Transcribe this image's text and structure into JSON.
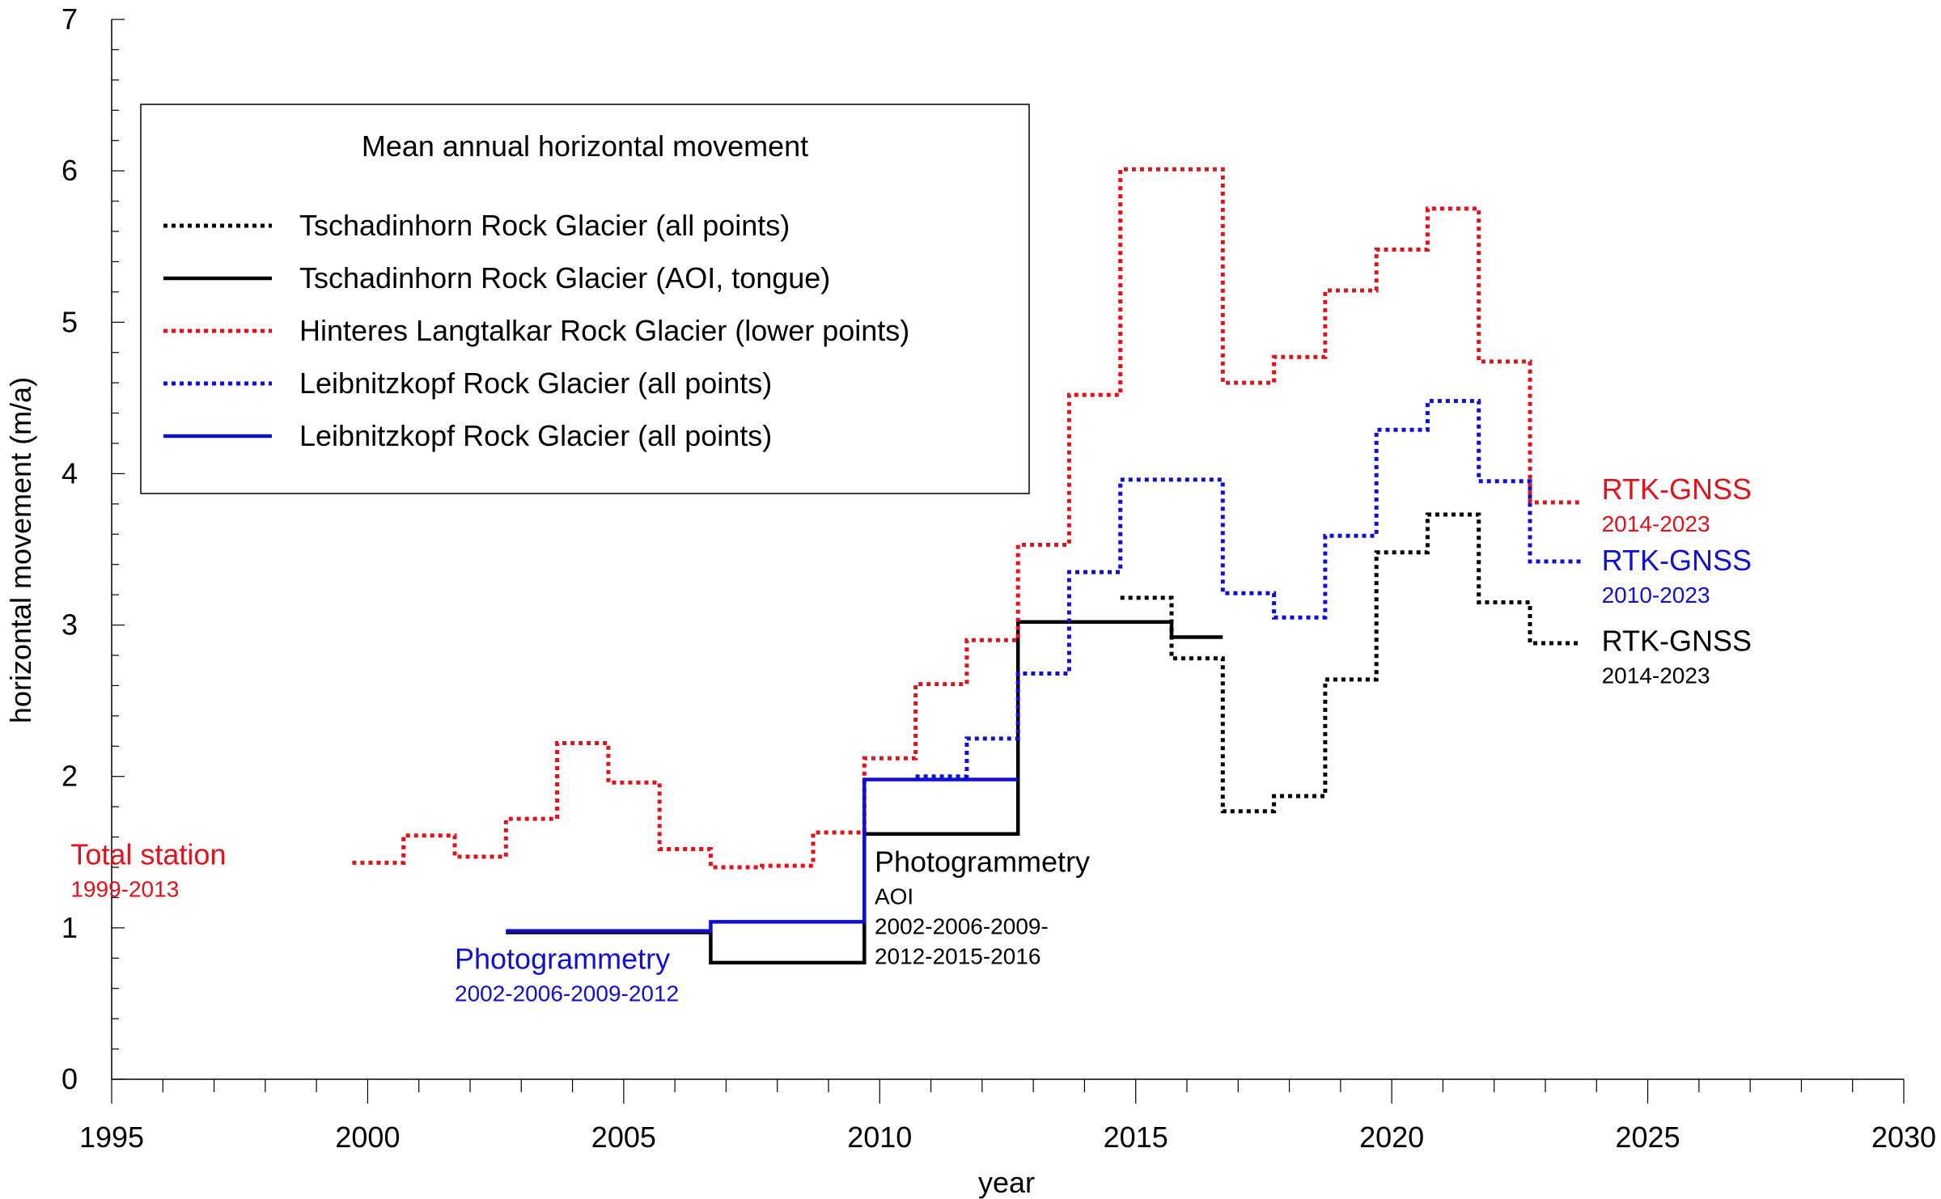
{
  "chart_data": {
    "type": "line",
    "xlabel": "year",
    "ylabel": "horizontal movement (m/a)",
    "xlim": [
      1995,
      2030
    ],
    "ylim": [
      0,
      7
    ],
    "x_ticks": [
      "1995",
      "2000",
      "2005",
      "2010",
      "2015",
      "2020",
      "2025",
      "2030"
    ],
    "y_ticks": [
      "0",
      "1",
      "2",
      "3",
      "4",
      "5",
      "6",
      "7"
    ],
    "legend": {
      "title": "Mean annual horizontal movement",
      "position": "top-left"
    },
    "series": [
      {
        "name": "Tschadinhorn Rock Glacier (all points)",
        "color": "#000000",
        "style": "dotted",
        "steps": [
          {
            "x0": 2014.7,
            "x1": 2015.7,
            "y": 3.18
          },
          {
            "x0": 2015.7,
            "x1": 2016.7,
            "y": 2.78
          },
          {
            "x0": 2016.7,
            "x1": 2017.7,
            "y": 1.77
          },
          {
            "x0": 2017.7,
            "x1": 2018.7,
            "y": 1.87
          },
          {
            "x0": 2018.7,
            "x1": 2019.7,
            "y": 2.64
          },
          {
            "x0": 2019.7,
            "x1": 2020.7,
            "y": 3.48
          },
          {
            "x0": 2020.7,
            "x1": 2021.7,
            "y": 3.73
          },
          {
            "x0": 2021.7,
            "x1": 2022.7,
            "y": 3.15
          },
          {
            "x0": 2022.7,
            "x1": 2023.7,
            "y": 2.88
          }
        ]
      },
      {
        "name": "Tschadinhorn Rock Glacier (AOI, tongue)",
        "color": "#000000",
        "style": "solid",
        "steps": [
          {
            "x0": 2002.7,
            "x1": 2006.7,
            "y": 0.97
          },
          {
            "x0": 2006.7,
            "x1": 2009.7,
            "y": 0.77
          },
          {
            "x0": 2009.7,
            "x1": 2012.7,
            "y": 1.62
          },
          {
            "x0": 2012.7,
            "x1": 2015.7,
            "y": 3.02
          },
          {
            "x0": 2015.7,
            "x1": 2016.7,
            "y": 2.92
          }
        ]
      },
      {
        "name": "Hinteres Langtalkar Rock Glacier (lower points)",
        "color": "#e0121b",
        "style": "dotted",
        "steps": [
          {
            "x0": 1999.7,
            "x1": 2000.7,
            "y": 1.43
          },
          {
            "x0": 2000.7,
            "x1": 2001.7,
            "y": 1.61
          },
          {
            "x0": 2001.7,
            "x1": 2002.7,
            "y": 1.47
          },
          {
            "x0": 2002.7,
            "x1": 2003.7,
            "y": 1.72
          },
          {
            "x0": 2003.7,
            "x1": 2004.7,
            "y": 2.22
          },
          {
            "x0": 2004.7,
            "x1": 2005.7,
            "y": 1.96
          },
          {
            "x0": 2005.7,
            "x1": 2006.7,
            "y": 1.52
          },
          {
            "x0": 2006.7,
            "x1": 2007.7,
            "y": 1.4
          },
          {
            "x0": 2007.7,
            "x1": 2008.7,
            "y": 1.41
          },
          {
            "x0": 2008.7,
            "x1": 2009.7,
            "y": 1.63
          },
          {
            "x0": 2009.7,
            "x1": 2010.7,
            "y": 2.12
          },
          {
            "x0": 2010.7,
            "x1": 2011.7,
            "y": 2.61
          },
          {
            "x0": 2011.7,
            "x1": 2012.7,
            "y": 2.9
          },
          {
            "x0": 2012.7,
            "x1": 2013.7,
            "y": 3.53
          },
          {
            "x0": 2013.7,
            "x1": 2014.7,
            "y": 4.52
          },
          {
            "x0": 2014.7,
            "x1": 2016.7,
            "y": 6.01
          },
          {
            "x0": 2016.7,
            "x1": 2017.7,
            "y": 4.6
          },
          {
            "x0": 2017.7,
            "x1": 2018.7,
            "y": 4.77
          },
          {
            "x0": 2018.7,
            "x1": 2019.7,
            "y": 5.21
          },
          {
            "x0": 2019.7,
            "x1": 2020.7,
            "y": 5.48
          },
          {
            "x0": 2020.7,
            "x1": 2021.7,
            "y": 5.75
          },
          {
            "x0": 2021.7,
            "x1": 2022.7,
            "y": 4.74
          },
          {
            "x0": 2022.7,
            "x1": 2023.7,
            "y": 3.81
          }
        ]
      },
      {
        "name": "Leibnitzkopf Rock Glacier (all points)",
        "color": "#1010d0",
        "style": "dotted",
        "steps": [
          {
            "x0": 2010.7,
            "x1": 2011.7,
            "y": 2.0
          },
          {
            "x0": 2011.7,
            "x1": 2012.7,
            "y": 2.25
          },
          {
            "x0": 2012.7,
            "x1": 2013.7,
            "y": 2.68
          },
          {
            "x0": 2013.7,
            "x1": 2014.7,
            "y": 3.35
          },
          {
            "x0": 2014.7,
            "x1": 2016.7,
            "y": 3.96
          },
          {
            "x0": 2016.7,
            "x1": 2017.7,
            "y": 3.21
          },
          {
            "x0": 2017.7,
            "x1": 2018.7,
            "y": 3.05
          },
          {
            "x0": 2018.7,
            "x1": 2019.7,
            "y": 3.59
          },
          {
            "x0": 2019.7,
            "x1": 2020.7,
            "y": 4.29
          },
          {
            "x0": 2020.7,
            "x1": 2021.7,
            "y": 4.48
          },
          {
            "x0": 2021.7,
            "x1": 2022.7,
            "y": 3.95
          },
          {
            "x0": 2022.7,
            "x1": 2023.7,
            "y": 3.42
          }
        ]
      },
      {
        "name": "Leibnitzkopf Rock Glacier (all points)",
        "color": "#1010d0",
        "style": "solid",
        "steps": [
          {
            "x0": 2002.7,
            "x1": 2006.7,
            "y": 0.98
          },
          {
            "x0": 2006.7,
            "x1": 2009.7,
            "y": 1.04
          },
          {
            "x0": 2009.7,
            "x1": 2012.7,
            "y": 1.98
          }
        ]
      }
    ],
    "annotations": [
      {
        "id": "total-station",
        "text": "Total station",
        "sub": [
          "1999-2013"
        ],
        "color": "#e0121b",
        "x": 1994.2,
        "y": 1.42,
        "anchor": "start"
      },
      {
        "id": "photogrammetry-blue",
        "text": "Photogrammetry",
        "sub": [
          "2002-2006-2009-2012"
        ],
        "color": "#1010d0",
        "x": 2001.7,
        "y": 0.73,
        "anchor": "start"
      },
      {
        "id": "photogrammetry-black",
        "text": "Photogrammetry",
        "sub": [
          "AOI",
          "2002-2006-2009-",
          "2012-2015-2016"
        ],
        "color": "#000000",
        "x": 2009.9,
        "y": 1.37,
        "anchor": "start"
      },
      {
        "id": "rtk-red",
        "text": "RTK-GNSS",
        "sub": [
          "2014-2023"
        ],
        "color": "#e0121b",
        "x": 2024.1,
        "y": 3.83,
        "anchor": "start"
      },
      {
        "id": "rtk-blue",
        "text": "RTK-GNSS",
        "sub": [
          "2010-2023"
        ],
        "color": "#1010d0",
        "x": 2024.1,
        "y": 3.36,
        "anchor": "start"
      },
      {
        "id": "rtk-black",
        "text": "RTK-GNSS",
        "sub": [
          "2014-2023"
        ],
        "color": "#000000",
        "x": 2024.1,
        "y": 2.83,
        "anchor": "start"
      }
    ]
  }
}
